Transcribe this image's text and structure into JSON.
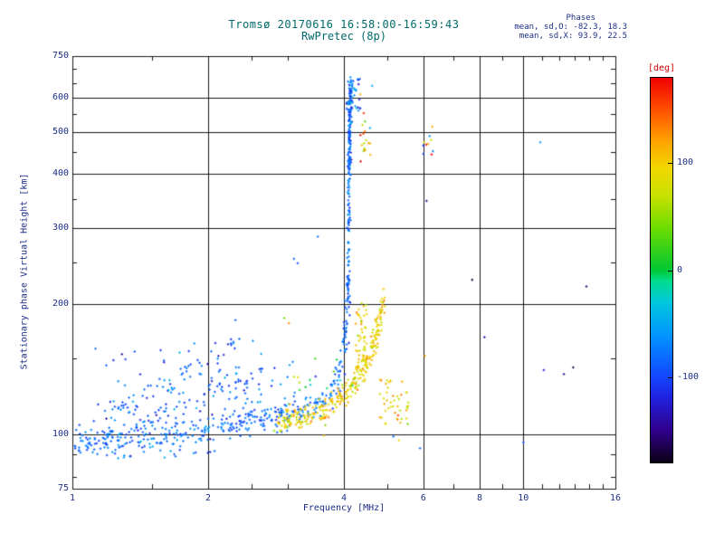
{
  "titles": {
    "main": "Tromsø 20170616 16:58:00-16:59:43",
    "sub": "RwPretec (8p)"
  },
  "stats": {
    "header": "Phases",
    "o_line": "mean, sd,O: -82.3, 18.3",
    "x_line": "mean, sd,X:  93.9, 22.5"
  },
  "axes": {
    "x": {
      "label": "Frequency [MHz]",
      "min": 1,
      "max": 16,
      "scale": "log",
      "ticks": [
        1,
        2,
        4,
        6,
        8,
        10,
        16
      ],
      "grid_ticks": [
        2,
        4,
        6,
        8,
        10
      ],
      "minor_ticks": [
        1.5,
        2.5,
        3,
        5,
        7,
        9,
        11,
        12,
        13,
        14,
        15
      ]
    },
    "y": {
      "label": "Stationary phase Virtual Height [km]",
      "min": 75,
      "max": 750,
      "scale": "log",
      "ticks": [
        750,
        600,
        500,
        400,
        300,
        200,
        100,
        75
      ],
      "grid_ticks": [
        100,
        200,
        300,
        400,
        500,
        600
      ],
      "minor_ticks": [
        80,
        90,
        150,
        250,
        350,
        450,
        550,
        650,
        700
      ]
    }
  },
  "colorbar": {
    "label": "[deg]",
    "min": -180,
    "max": 180,
    "ticks": [
      100,
      0,
      -100
    ],
    "stops": [
      [
        -180,
        "#0a0014"
      ],
      [
        -150,
        "#30008c"
      ],
      [
        -120,
        "#2020dc"
      ],
      [
        -100,
        "#1446ff"
      ],
      [
        -60,
        "#0096ff"
      ],
      [
        -30,
        "#00c8dc"
      ],
      [
        -10,
        "#00dc8c"
      ],
      [
        0,
        "#00c832"
      ],
      [
        40,
        "#6edc00"
      ],
      [
        70,
        "#c8e100"
      ],
      [
        95,
        "#f0d700"
      ],
      [
        120,
        "#ffa500"
      ],
      [
        150,
        "#ff5000"
      ],
      [
        180,
        "#f00000"
      ]
    ]
  },
  "colors": {
    "title_text": "#006a6a",
    "axis_text": "#1c2f86",
    "stats_text": "#1c2f86",
    "deg_label": "#cc0000",
    "grid": "#000000",
    "background": "#ffffff"
  },
  "chart_data": {
    "type": "scatter",
    "title": "Tromsø 20170616 16:58:00-16:59:43",
    "subtitle": "RwPretec (8p)",
    "xlabel": "Frequency [MHz]",
    "ylabel": "Stationary phase Virtual Height [km]",
    "xscale": "log",
    "yscale": "log",
    "xlim": [
      1,
      16
    ],
    "ylim": [
      75,
      750
    ],
    "color_variable": "phase [deg]",
    "color_range": [
      -180,
      180
    ],
    "legend": "none",
    "grid": true,
    "seed": 1337,
    "clusters": [
      {
        "name": "o-mode-low-scatter",
        "f": [
          1.05,
          2.9
        ],
        "h": [
          106,
          168
        ],
        "n": 60,
        "phase_mean": -85,
        "phase_sd": 25
      },
      {
        "name": "o-mode-below-band",
        "f": [
          1.0,
          2.1
        ],
        "h": [
          88,
          97
        ],
        "n": 40,
        "phase_mean": -80,
        "phase_sd": 20
      },
      {
        "name": "o-mode-mid-scatter",
        "f": [
          1.9,
          3.0
        ],
        "h": [
          105,
          145
        ],
        "n": 40,
        "phase_mean": -88,
        "phase_sd": 22
      },
      {
        "name": "x-mode-knee",
        "f": [
          4.25,
          4.5
        ],
        "h": [
          140,
          205
        ],
        "n": 60,
        "phase_mean": 95,
        "phase_sd": 18
      },
      {
        "name": "x-mode-tail",
        "f": [
          4.8,
          5.6
        ],
        "h": [
          105,
          135
        ],
        "n": 45,
        "phase_mean": 95,
        "phase_sd": 25
      },
      {
        "name": "x-mode-upper",
        "f": [
          4.35,
          4.6
        ],
        "h": [
          420,
          560
        ],
        "n": 18,
        "phase_mean": 85,
        "phase_sd": 45
      },
      {
        "name": "mixed-mid",
        "f": [
          3.0,
          4.0
        ],
        "h": [
          115,
          150
        ],
        "n": 25,
        "phase_mean": -20,
        "phase_sd": 60
      },
      {
        "name": "column-top-spread",
        "f": [
          4.05,
          4.35
        ],
        "h": [
          560,
          665
        ],
        "n": 30,
        "phase_mean": -70,
        "phase_sd": 40
      },
      {
        "name": "sporadic-6mhz",
        "f": [
          6.0,
          6.35
        ],
        "h": [
          440,
          520
        ],
        "n": 6,
        "phase_mean": 20,
        "phase_sd": 90
      }
    ],
    "traces": [
      {
        "name": "o-mode-main-trace",
        "phase_mean": -82,
        "phase_sd": 16,
        "n": 380,
        "jitter": [
          0.012,
          0.016
        ],
        "points": [
          [
            1.03,
            97
          ],
          [
            1.2,
            98
          ],
          [
            1.45,
            99
          ],
          [
            1.7,
            100
          ],
          [
            2.0,
            103
          ],
          [
            2.4,
            106
          ],
          [
            2.8,
            109
          ],
          [
            3.2,
            113
          ],
          [
            3.5,
            118
          ],
          [
            3.75,
            126
          ],
          [
            3.9,
            138
          ],
          [
            4.0,
            158
          ],
          [
            4.06,
            185
          ],
          [
            4.1,
            215
          ]
        ]
      },
      {
        "name": "o-mode-streak-1",
        "phase_mean": -95,
        "phase_sd": 22,
        "n": 55,
        "jitter": [
          0.02,
          0.015
        ],
        "points": [
          [
            1.12,
            108
          ],
          [
            1.55,
            128
          ],
          [
            1.95,
            148
          ],
          [
            2.3,
            162
          ]
        ]
      },
      {
        "name": "o-mode-streak-2",
        "phase_mean": -90,
        "phase_sd": 22,
        "n": 55,
        "jitter": [
          0.02,
          0.015
        ],
        "points": [
          [
            1.3,
            104
          ],
          [
            1.8,
            118
          ],
          [
            2.3,
            132
          ],
          [
            2.75,
            142
          ]
        ]
      },
      {
        "name": "x-mode-main-trace",
        "phase_mean": 94,
        "phase_sd": 20,
        "n": 300,
        "jitter": [
          0.012,
          0.015
        ],
        "points": [
          [
            2.85,
            106
          ],
          [
            3.1,
            108
          ],
          [
            3.4,
            111
          ],
          [
            3.7,
            115
          ],
          [
            3.95,
            121
          ],
          [
            4.15,
            128
          ],
          [
            4.35,
            137
          ],
          [
            4.55,
            150
          ],
          [
            4.7,
            165
          ],
          [
            4.82,
            185
          ],
          [
            4.9,
            208
          ]
        ]
      },
      {
        "name": "o-mode-column-lower",
        "phase_mean": -82,
        "phase_sd": 18,
        "n": 70,
        "jitter": [
          0.005,
          0.012
        ],
        "points": [
          [
            4.09,
            205
          ],
          [
            4.1,
            300
          ],
          [
            4.11,
            400
          ]
        ]
      },
      {
        "name": "o-mode-column-upper",
        "phase_mean": -84,
        "phase_sd": 22,
        "n": 150,
        "jitter": [
          0.006,
          0.01
        ],
        "points": [
          [
            4.11,
            400
          ],
          [
            4.12,
            520
          ],
          [
            4.14,
            660
          ]
        ]
      }
    ],
    "outliers": [
      [
        2.95,
        186,
        40
      ],
      [
        3.02,
        181,
        130
      ],
      [
        2.3,
        184,
        -88
      ],
      [
        3.1,
        255,
        -85
      ],
      [
        3.16,
        249,
        -96
      ],
      [
        3.5,
        287,
        -78
      ],
      [
        5.9,
        93,
        -85
      ],
      [
        5.3,
        97,
        95
      ],
      [
        5.15,
        99,
        -80
      ],
      [
        6.05,
        152,
        115
      ],
      [
        6.1,
        347,
        -150
      ],
      [
        7.7,
        228,
        -170
      ],
      [
        8.2,
        168,
        -140
      ],
      [
        10.0,
        96,
        -90
      ],
      [
        10.9,
        474,
        -55
      ],
      [
        11.1,
        141,
        -120
      ],
      [
        12.3,
        138,
        -150
      ],
      [
        12.9,
        143,
        -170
      ],
      [
        13.8,
        220,
        -160
      ],
      [
        4.62,
        640,
        -50
      ],
      [
        4.35,
        612,
        110
      ],
      [
        6.28,
        515,
        120
      ],
      [
        6.2,
        490,
        -60
      ],
      [
        6.15,
        470,
        115
      ],
      [
        6.3,
        452,
        -75
      ]
    ]
  }
}
